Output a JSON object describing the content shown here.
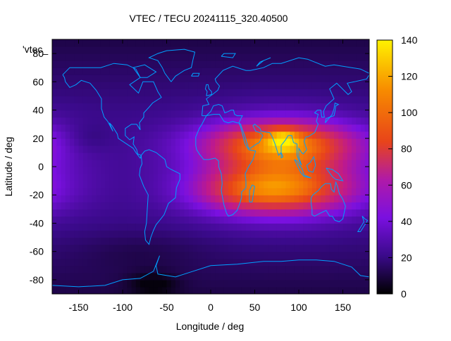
{
  "chart_data": {
    "type": "heatmap",
    "title": "VTEC / TECU 20241115_320.40500",
    "xlabel": "Longitude / deg",
    "ylabel": "Latitude / deg",
    "xlim": [
      -180,
      180
    ],
    "ylim": [
      -90,
      90
    ],
    "xticks": [
      -150,
      -100,
      -50,
      0,
      50,
      100,
      150
    ],
    "yticks": [
      -80,
      -60,
      -40,
      -20,
      0,
      20,
      40,
      60,
      80
    ],
    "legend": {
      "label": "'vtec_",
      "placement": "top-left"
    },
    "colorbar": {
      "min": 0,
      "max": 140,
      "ticks": [
        0,
        20,
        40,
        60,
        80,
        100,
        120,
        140
      ],
      "palette": [
        "#000000",
        "#3a0a8a",
        "#7a10e0",
        "#c01a8a",
        "#e8441a",
        "#f78a00",
        "#fff200"
      ]
    },
    "grid": false,
    "features": {
      "peak_vtec": 140,
      "peak_location": {
        "lon": 80,
        "lat": 20
      },
      "anomaly_crests_lat": [
        17,
        -17
      ],
      "background_vtec": 25,
      "southern_low_vtec": 4,
      "southern_low_location": {
        "lon": -65,
        "lat": -83
      }
    },
    "continent_outline_color": "#00a0ff"
  }
}
